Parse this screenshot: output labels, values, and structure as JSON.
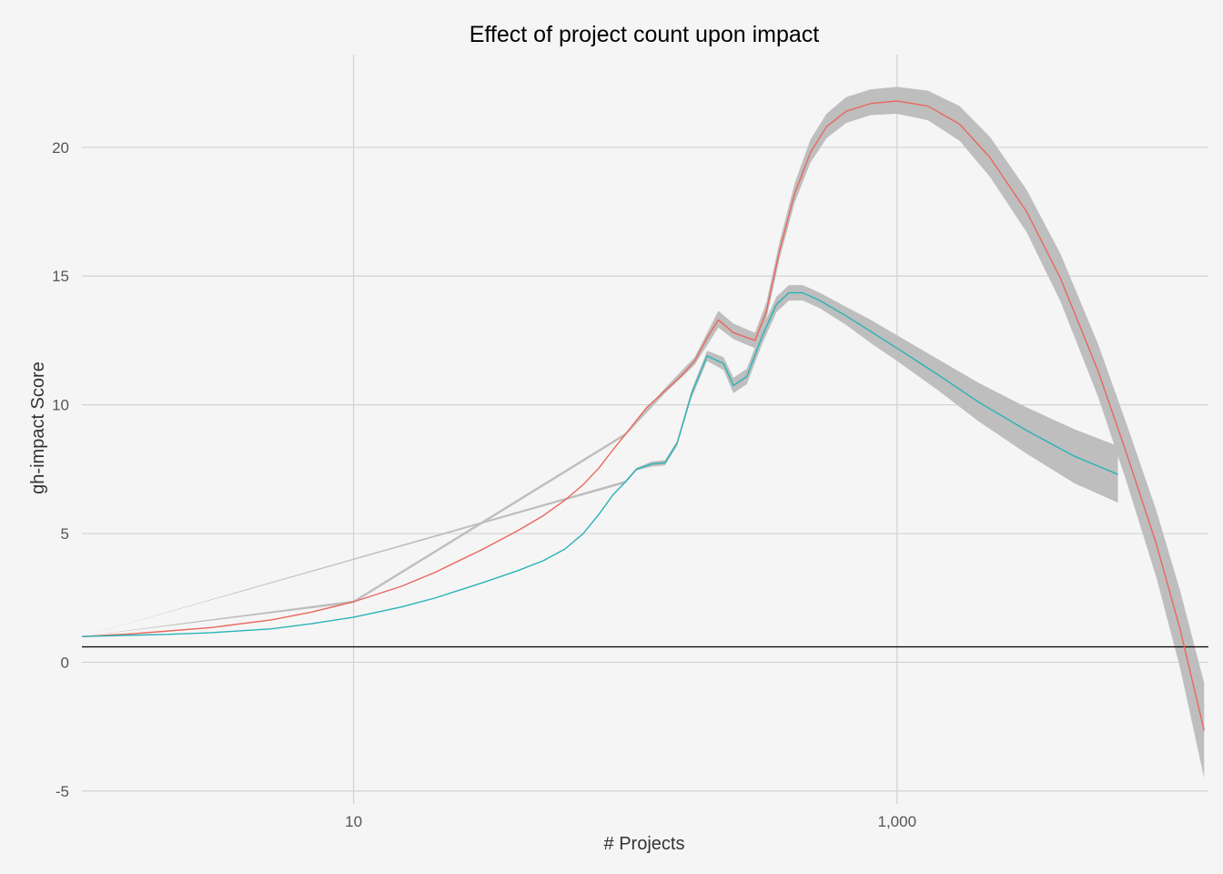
{
  "chart_data": {
    "type": "line",
    "title": "Effect of project count upon impact",
    "xlabel": "# Projects",
    "ylabel": "gh-impact Score",
    "x_scale": "log10",
    "xlim": [
      1,
      14000
    ],
    "ylim": [
      -5.5,
      23.6
    ],
    "x_ticks": [
      {
        "value": 10,
        "label": "10"
      },
      {
        "value": 1000,
        "label": "1,000"
      }
    ],
    "y_ticks": [
      {
        "value": -5,
        "label": "-5"
      },
      {
        "value": 0,
        "label": "0"
      },
      {
        "value": 5,
        "label": "5"
      },
      {
        "value": 10,
        "label": "10"
      },
      {
        "value": 15,
        "label": "15"
      },
      {
        "value": 20,
        "label": "20"
      }
    ],
    "grid": true,
    "legend": "none",
    "reference_line": {
      "y": 0.6,
      "color": "#000000"
    },
    "band_color": "#bebebe",
    "series": [
      {
        "color": "#e8685d",
        "points": [
          [
            1,
            1.0
          ],
          [
            1.5,
            1.1
          ],
          [
            2,
            1.2
          ],
          [
            3,
            1.35
          ],
          [
            5,
            1.65
          ],
          [
            7,
            1.95
          ],
          [
            10,
            2.35
          ],
          [
            15,
            2.95
          ],
          [
            20,
            3.5
          ],
          [
            30,
            4.4
          ],
          [
            40,
            5.1
          ],
          [
            50,
            5.7
          ],
          [
            60,
            6.3
          ],
          [
            70,
            6.9
          ],
          [
            80,
            7.55
          ],
          [
            90,
            8.25
          ],
          [
            100,
            8.85
          ],
          [
            110,
            9.4
          ],
          [
            120,
            9.9
          ],
          [
            140,
            10.55
          ],
          [
            160,
            11.1
          ],
          [
            180,
            11.7
          ],
          [
            200,
            12.6
          ],
          [
            220,
            13.3
          ],
          [
            250,
            12.8
          ],
          [
            300,
            12.5
          ],
          [
            330,
            13.6
          ],
          [
            370,
            16.0
          ],
          [
            420,
            18.2
          ],
          [
            480,
            19.8
          ],
          [
            550,
            20.8
          ],
          [
            650,
            21.4
          ],
          [
            800,
            21.7
          ],
          [
            1000,
            21.8
          ],
          [
            1300,
            21.6
          ],
          [
            1700,
            20.9
          ],
          [
            2200,
            19.6
          ],
          [
            3000,
            17.5
          ],
          [
            4000,
            14.9
          ],
          [
            5500,
            11.3
          ],
          [
            7000,
            8.1
          ],
          [
            9000,
            4.6
          ],
          [
            11000,
            1.3
          ],
          [
            13500,
            -2.65
          ]
        ],
        "band": [
          [
            1,
            1.0,
            1.0
          ],
          [
            10,
            2.3,
            2.4
          ],
          [
            100,
            8.8,
            8.9
          ],
          [
            140,
            10.45,
            10.65
          ],
          [
            180,
            11.55,
            11.85
          ],
          [
            220,
            13.0,
            13.65
          ],
          [
            250,
            12.55,
            13.15
          ],
          [
            300,
            12.2,
            12.8
          ],
          [
            330,
            13.3,
            13.95
          ],
          [
            370,
            15.7,
            16.35
          ],
          [
            420,
            17.85,
            18.6
          ],
          [
            480,
            19.4,
            20.3
          ],
          [
            550,
            20.35,
            21.3
          ],
          [
            650,
            20.95,
            21.95
          ],
          [
            800,
            21.25,
            22.25
          ],
          [
            1000,
            21.3,
            22.35
          ],
          [
            1300,
            21.05,
            22.2
          ],
          [
            1700,
            20.25,
            21.6
          ],
          [
            2200,
            18.85,
            20.4
          ],
          [
            3000,
            16.7,
            18.35
          ],
          [
            4000,
            14.0,
            15.85
          ],
          [
            5500,
            10.3,
            12.35
          ],
          [
            7000,
            7.0,
            9.25
          ],
          [
            9000,
            3.3,
            5.9
          ],
          [
            11000,
            -0.2,
            2.8
          ],
          [
            13500,
            -4.5,
            -0.8
          ]
        ]
      },
      {
        "color": "#29b3b8",
        "points": [
          [
            1,
            1.0
          ],
          [
            1.5,
            1.05
          ],
          [
            2,
            1.08
          ],
          [
            3,
            1.15
          ],
          [
            5,
            1.3
          ],
          [
            7,
            1.5
          ],
          [
            10,
            1.75
          ],
          [
            15,
            2.15
          ],
          [
            20,
            2.5
          ],
          [
            30,
            3.1
          ],
          [
            40,
            3.55
          ],
          [
            50,
            3.95
          ],
          [
            60,
            4.4
          ],
          [
            70,
            5.0
          ],
          [
            80,
            5.75
          ],
          [
            90,
            6.5
          ],
          [
            100,
            7.0
          ],
          [
            110,
            7.5
          ],
          [
            125,
            7.7
          ],
          [
            140,
            7.75
          ],
          [
            155,
            8.5
          ],
          [
            175,
            10.4
          ],
          [
            200,
            11.9
          ],
          [
            230,
            11.6
          ],
          [
            250,
            10.75
          ],
          [
            280,
            11.1
          ],
          [
            320,
            12.7
          ],
          [
            360,
            13.9
          ],
          [
            400,
            14.35
          ],
          [
            450,
            14.35
          ],
          [
            520,
            14.05
          ],
          [
            650,
            13.45
          ],
          [
            800,
            12.85
          ],
          [
            1000,
            12.2
          ],
          [
            1400,
            11.2
          ],
          [
            2000,
            10.1
          ],
          [
            3000,
            9.0
          ],
          [
            4500,
            8.0
          ],
          [
            6500,
            7.3
          ]
        ],
        "band": [
          [
            1,
            1.0,
            1.0
          ],
          [
            100,
            6.95,
            7.05
          ],
          [
            110,
            7.45,
            7.55
          ],
          [
            125,
            7.6,
            7.8
          ],
          [
            140,
            7.65,
            7.85
          ],
          [
            155,
            8.4,
            8.6
          ],
          [
            175,
            10.25,
            10.55
          ],
          [
            200,
            11.7,
            12.1
          ],
          [
            230,
            11.35,
            11.85
          ],
          [
            250,
            10.45,
            11.05
          ],
          [
            280,
            10.8,
            11.4
          ],
          [
            320,
            12.4,
            13.0
          ],
          [
            360,
            13.6,
            14.2
          ],
          [
            400,
            14.05,
            14.65
          ],
          [
            450,
            14.05,
            14.65
          ],
          [
            520,
            13.75,
            14.35
          ],
          [
            650,
            13.1,
            13.8
          ],
          [
            800,
            12.4,
            13.3
          ],
          [
            1000,
            11.7,
            12.7
          ],
          [
            1400,
            10.6,
            11.8
          ],
          [
            2000,
            9.35,
            10.85
          ],
          [
            3000,
            8.1,
            9.9
          ],
          [
            4500,
            6.95,
            9.05
          ],
          [
            6500,
            6.2,
            8.4
          ]
        ]
      }
    ]
  }
}
